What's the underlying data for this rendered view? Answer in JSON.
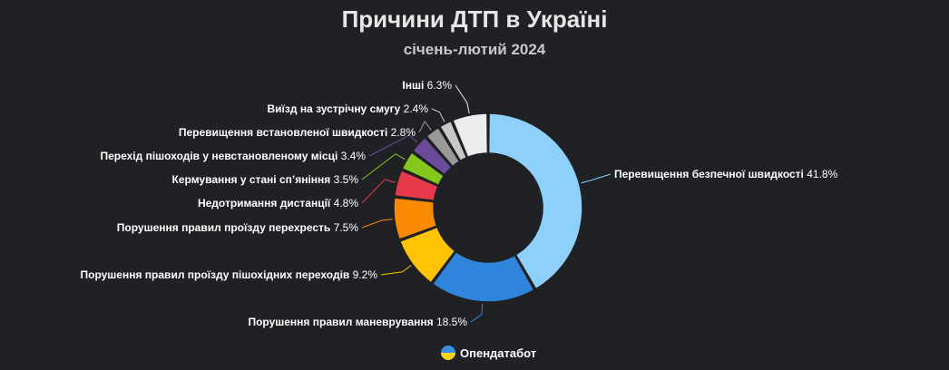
{
  "chart_data": {
    "type": "pie",
    "donut": true,
    "title": "Причини ДТП в Україні",
    "subtitle": "січень-лютий 2024",
    "unit": "%",
    "slices": [
      {
        "label": "Перевищення безпечної швидкості",
        "value": 41.8,
        "color": "#8dd1fb"
      },
      {
        "label": "Порушення правил маневрування",
        "value": 18.5,
        "color": "#2f84dc"
      },
      {
        "label": "Порушення правил проїзду пішохідних переходів",
        "value": 9.2,
        "color": "#fdc304"
      },
      {
        "label": "Порушення правил проїзду перехресть",
        "value": 7.5,
        "color": "#fb8a03"
      },
      {
        "label": "Недотримання дистанції",
        "value": 4.8,
        "color": "#e8394a"
      },
      {
        "label": "Кермування у стані сп’яніння",
        "value": 3.5,
        "color": "#86c71e"
      },
      {
        "label": "Перехід пішоходів у невстановленому місці",
        "value": 3.4,
        "color": "#6a4a9a"
      },
      {
        "label": "Перевищення встановленої швидкості",
        "value": 2.8,
        "color": "#999999"
      },
      {
        "label": "Виїзд на зустрічну смугу",
        "value": 2.4,
        "color": "#c8c8c8"
      },
      {
        "label": "Інші",
        "value": 6.3,
        "color": "#ececec"
      }
    ]
  },
  "source": {
    "name": "Опендатабот",
    "icon": "opendatabot-logo-icon"
  }
}
